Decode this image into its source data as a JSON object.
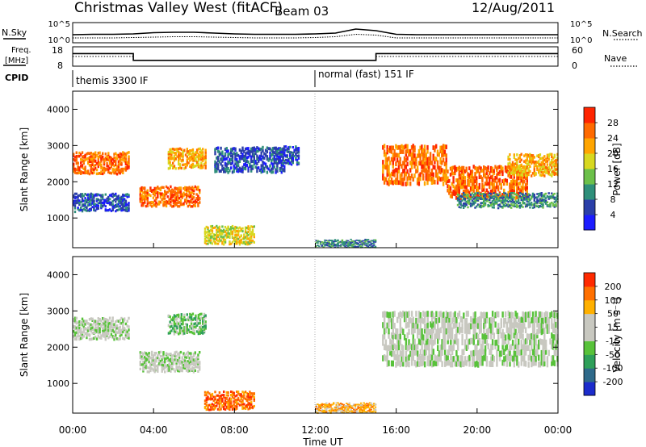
{
  "header": {
    "station": "Christmas Valley West (fitACF)",
    "beam": "Beam 03",
    "date": "12/Aug/2011"
  },
  "left_labels": {
    "nsky": "N.Sky",
    "freq": "Freq.",
    "freq_unit": "[MHz]",
    "cpid": "CPID"
  },
  "right_labels": {
    "nsearch": "N.Search",
    "nave": "Nave"
  },
  "cpid_entries": [
    {
      "label": "themis 3300 IF",
      "start_hour": 0,
      "end_hour": 12
    },
    {
      "label": "normal (fast) 151 IF",
      "start_hour": 12,
      "end_hour": 24
    }
  ],
  "chart_data": [
    {
      "type": "line",
      "panel": "noise",
      "series": [
        {
          "name": "N.Sky"
        },
        {
          "name": "N.Search"
        }
      ],
      "y_ticks_left": [
        "10^5",
        "10^0"
      ],
      "y_ticks_right": [
        "10^5",
        "10^0"
      ],
      "x": [
        0,
        1,
        2,
        3,
        4,
        5,
        6,
        7,
        8,
        9,
        10,
        11,
        12,
        13,
        14,
        15,
        16,
        17,
        18,
        19,
        20,
        21,
        22,
        23,
        24
      ],
      "nsky_values": [
        2.0,
        2.1,
        2.1,
        2.2,
        2.5,
        2.6,
        2.6,
        2.4,
        2.2,
        2.1,
        2.1,
        2.1,
        2.2,
        2.4,
        3.4,
        3.0,
        2.1,
        2.0,
        2.0,
        2.0,
        2.0,
        2.0,
        2.0,
        2.0,
        2.0
      ],
      "nsearch_values": [
        1.2,
        1.2,
        1.2,
        1.3,
        1.4,
        1.5,
        1.5,
        1.4,
        1.3,
        1.2,
        1.2,
        1.2,
        1.3,
        1.5,
        2.1,
        1.9,
        1.2,
        1.2,
        1.2,
        1.2,
        1.2,
        1.2,
        1.2,
        1.2,
        1.2
      ]
    },
    {
      "type": "line",
      "panel": "frequency-nave",
      "series": [
        {
          "name": "Freq."
        },
        {
          "name": "Nave"
        }
      ],
      "y_ticks_left": [
        "18",
        "8"
      ],
      "y_ticks_right": [
        "60",
        "0"
      ],
      "x": [
        0,
        3,
        3,
        15,
        15,
        24
      ],
      "freq_values": [
        14.5,
        14.5,
        11.0,
        11.0,
        14.5,
        14.5
      ],
      "nave_values": [
        30,
        30,
        18,
        18,
        30,
        30
      ]
    },
    {
      "type": "heatmap",
      "panel": "power",
      "ylabel": "Slant Range [km]",
      "y_ticks": [
        "1000",
        "2000",
        "3000",
        "4000"
      ],
      "ylim": [
        180,
        4500
      ],
      "colorbar_label": "Power [dB]",
      "colorbar_ticks": [
        "4",
        "8",
        "12",
        "16",
        "20",
        "24",
        "28"
      ],
      "colorbar_colors": [
        "#1c1cff",
        "#2b3fa8",
        "#2f8f7a",
        "#6cc04a",
        "#d8d820",
        "#ffa500",
        "#ff6a00",
        "#ff2400"
      ],
      "echo_regions": [
        {
          "x0": 0.0,
          "x1": 2.8,
          "r0": 2250,
          "r1": 2850,
          "level": 6
        },
        {
          "x0": 0.0,
          "x1": 2.8,
          "r0": 1200,
          "r1": 1700,
          "level": 1
        },
        {
          "x0": 3.3,
          "x1": 6.3,
          "r0": 1350,
          "r1": 1900,
          "level": 6
        },
        {
          "x0": 4.7,
          "x1": 6.6,
          "r0": 2400,
          "r1": 2950,
          "level": 5
        },
        {
          "x0": 6.5,
          "x1": 9.0,
          "r0": 300,
          "r1": 800,
          "level": 4
        },
        {
          "x0": 7.0,
          "x1": 10.5,
          "r0": 2300,
          "r1": 3000,
          "level": 1
        },
        {
          "x0": 10.0,
          "x1": 11.2,
          "r0": 2500,
          "r1": 3000,
          "level": 1
        },
        {
          "x0": 15.3,
          "x1": 18.5,
          "r0": 2000,
          "r1": 3100,
          "level": 6
        },
        {
          "x0": 18.5,
          "x1": 22.5,
          "r0": 1600,
          "r1": 2500,
          "level": 6
        },
        {
          "x0": 21.5,
          "x1": 24.0,
          "r0": 2200,
          "r1": 2800,
          "level": 5
        },
        {
          "x0": 19.0,
          "x1": 24.0,
          "r0": 1300,
          "r1": 1700,
          "level": 2
        },
        {
          "x0": 12.0,
          "x1": 15.0,
          "r0": 200,
          "r1": 400,
          "level": 2
        }
      ]
    },
    {
      "type": "heatmap",
      "panel": "velocity",
      "ylabel": "Slant Range [km]",
      "y_ticks": [
        "1000",
        "2000",
        "3000",
        "4000"
      ],
      "ylim": [
        180,
        4500
      ],
      "colorbar_label": "Velocity [m s⁻¹]",
      "colorbar_ticks": [
        "200",
        "100",
        "50",
        "15",
        "-15",
        "-50",
        "-100",
        "-200"
      ],
      "colorbar_colors": [
        "#1c2ccc",
        "#2f6a8a",
        "#2fa05a",
        "#58c23a",
        "#c8c8c0",
        "#c8c8c0",
        "#ffb000",
        "#ff7000",
        "#ff2a00"
      ],
      "echo_regions": [
        {
          "x0": 0.0,
          "x1": 2.8,
          "r0": 2250,
          "r1": 2850,
          "level": 4
        },
        {
          "x0": 3.3,
          "x1": 6.3,
          "r0": 1350,
          "r1": 1900,
          "level": 4
        },
        {
          "x0": 4.7,
          "x1": 6.6,
          "r0": 2400,
          "r1": 2950,
          "level": 3
        },
        {
          "x0": 6.5,
          "x1": 9.0,
          "r0": 300,
          "r1": 800,
          "level": 7
        },
        {
          "x0": 15.3,
          "x1": 24.0,
          "r0": 1600,
          "r1": 3100,
          "level": 4
        },
        {
          "x0": 12.0,
          "x1": 15.0,
          "r0": 200,
          "r1": 450,
          "level": 6
        }
      ]
    }
  ],
  "x_axis": {
    "label": "Time UT",
    "tick_labels": [
      "00:00",
      "04:00",
      "08:00",
      "12:00",
      "16:00",
      "20:00",
      "00:00"
    ],
    "range_hours": [
      0,
      24
    ]
  }
}
